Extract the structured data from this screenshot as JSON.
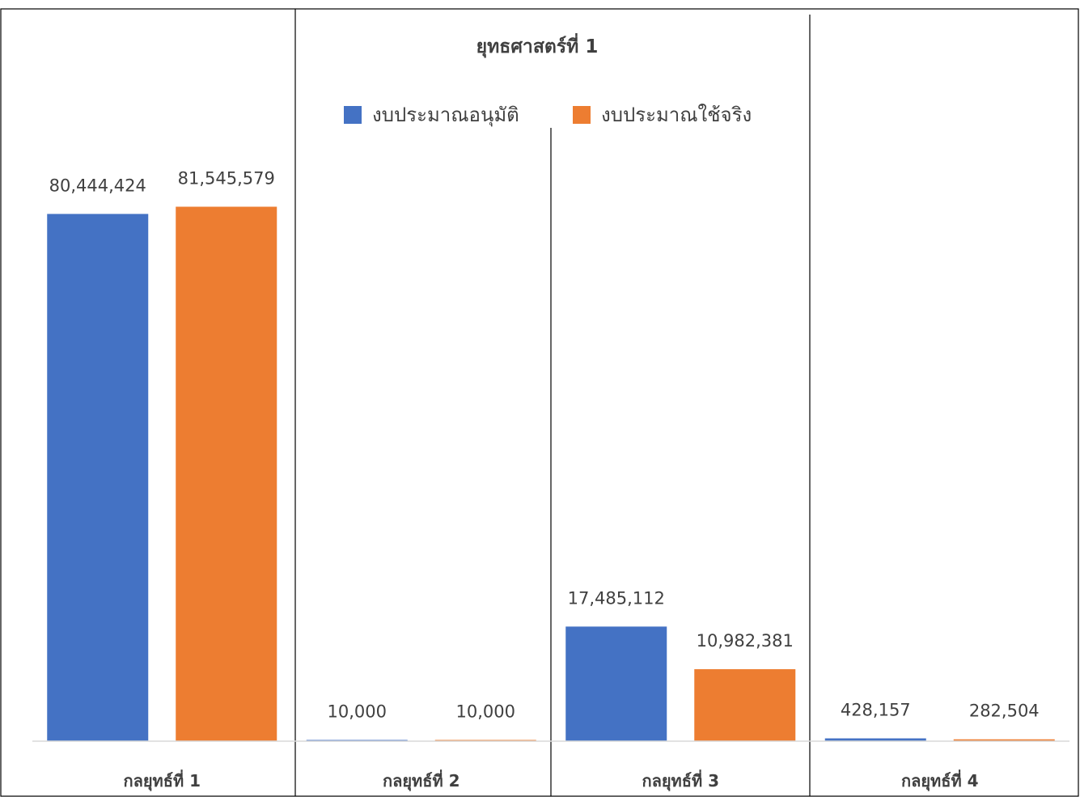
{
  "chart_data": {
    "type": "bar",
    "title": "ยุทธศาสตร์ที่ 1",
    "xlabel": "",
    "ylabel": "",
    "categories": [
      "กลยุทธ์ที่ 1",
      "กลยุทธ์ที่ 2",
      "กลยุทธ์ที่ 3",
      "กลยุทธ์ที่ 4"
    ],
    "series": [
      {
        "name": "งบประมาณอนุมัติ",
        "color": "#4472C4",
        "values": [
          80444424,
          10000,
          17485112,
          428157
        ],
        "labels": [
          "80,444,424",
          "10,000",
          "17,485,112",
          "428,157"
        ]
      },
      {
        "name": "งบประมาณใช้จริง",
        "color": "#ED7D31",
        "values": [
          81545579,
          10000,
          10982381,
          282504
        ],
        "labels": [
          "81,545,579",
          "10,000",
          "10,982,381",
          "282,504"
        ]
      }
    ],
    "ylim": [
      0,
      90000000
    ],
    "grid": false,
    "legend": "top"
  }
}
